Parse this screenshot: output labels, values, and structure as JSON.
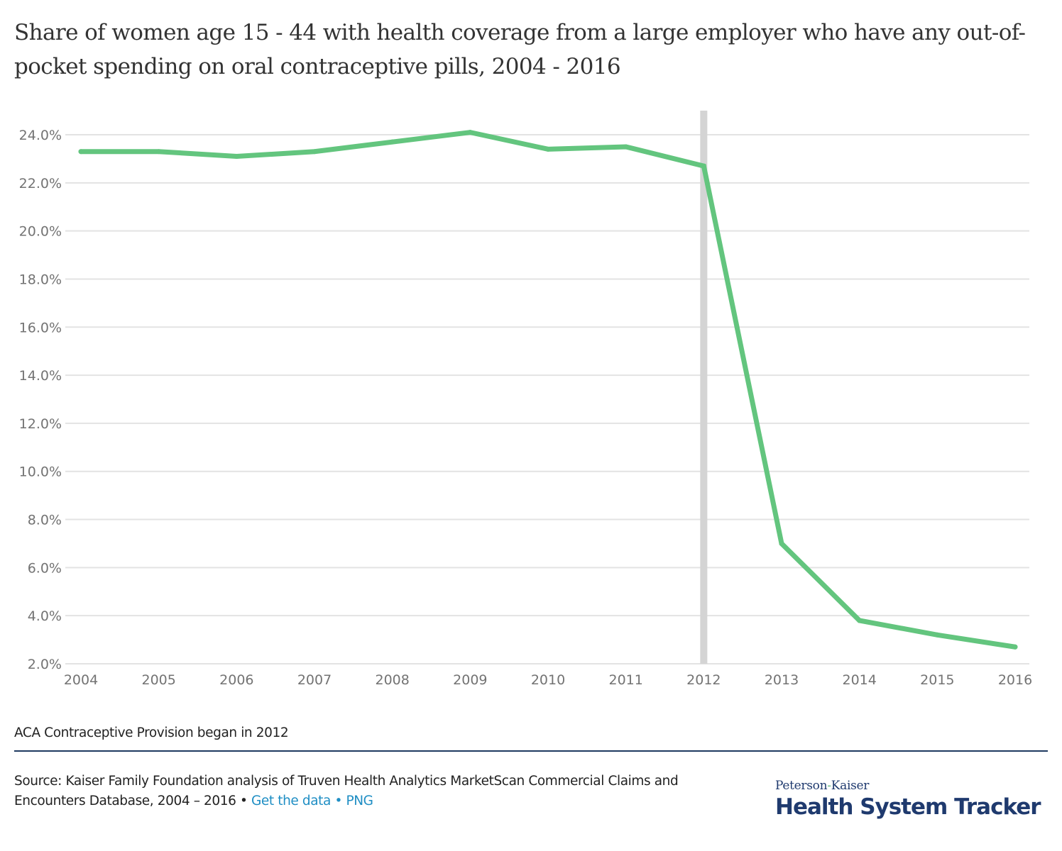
{
  "chart_data": {
    "type": "line",
    "title": "Share of women age 15 - 44 with health coverage from a large employer who have any out-of-pocket spending on oral contraceptive pills, 2004 - 2016",
    "xlabel": "",
    "ylabel": "",
    "x": [
      "2004",
      "2005",
      "2006",
      "2007",
      "2008",
      "2009",
      "2010",
      "2011",
      "2012",
      "2013",
      "2014",
      "2015",
      "2016"
    ],
    "series": [
      {
        "name": "Share with any out-of-pocket spending on oral contraceptive pills",
        "color": "#63c57e",
        "values": [
          23.3,
          23.3,
          23.1,
          23.3,
          23.7,
          24.1,
          23.4,
          23.5,
          22.7,
          7.0,
          3.8,
          3.2,
          2.7
        ]
      }
    ],
    "ylim": [
      2,
      24
    ],
    "yticks": [
      2,
      4,
      6,
      8,
      10,
      12,
      14,
      16,
      18,
      20,
      22,
      24
    ],
    "ytick_labels": [
      "2.0%",
      "4.0%",
      "6.0%",
      "8.0%",
      "10.0%",
      "12.0%",
      "14.0%",
      "16.0%",
      "18.0%",
      "20.0%",
      "22.0%",
      "24.0%"
    ],
    "grid": true,
    "legend": "none",
    "annotations": [
      {
        "type": "vertical-band",
        "x": "2012",
        "color": "#d4d4d4",
        "label": "ACA Contraceptive Provision began in 2012"
      }
    ]
  },
  "header": {
    "title": "Share of women age 15 - 44 with health coverage from a large employer who have any out-of-pocket spending on oral contraceptive pills, 2004 - 2016"
  },
  "footer": {
    "note": "ACA Contraceptive Provision began in 2012",
    "source_text": "Source: Kaiser Family Foundation analysis of Truven Health Analytics MarketScan Commercial Claims and Encounters Database, 2004 – 2016 • ",
    "get_data_link": "Get the data",
    "separator": " • ",
    "png_link": "PNG",
    "link_color": "#1f8ec4",
    "rule_color": "#1f3a60"
  },
  "logo": {
    "line1_a": "Peterson",
    "line1_dash": "-",
    "line1_b": "Kaiser",
    "line2": "Health System Tracker",
    "color": "#1f3a6e"
  }
}
